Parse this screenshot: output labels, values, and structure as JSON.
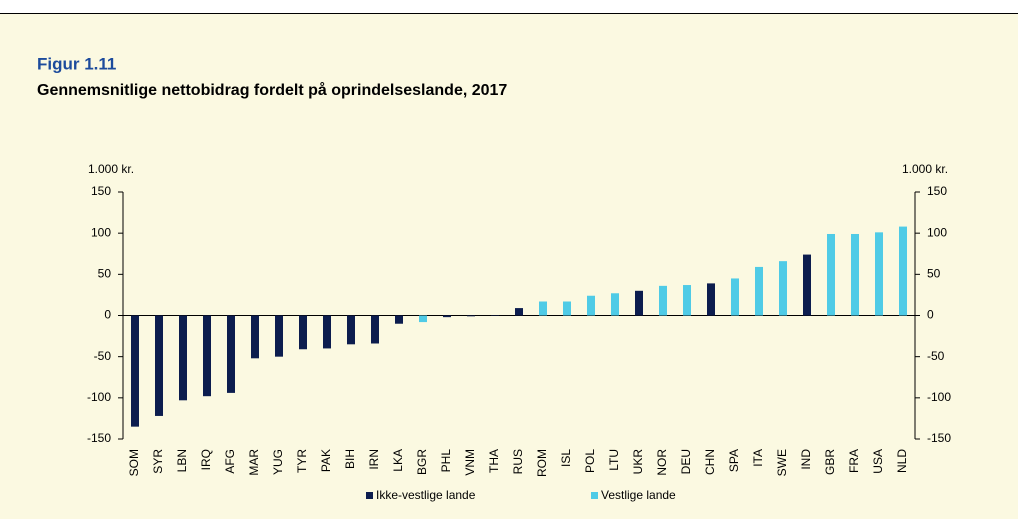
{
  "chart_data": {
    "type": "bar",
    "figure_label": "Figur 1.11",
    "title": "Gennemsnitlige nettobidrag fordelt på oprindelseslande, 2017",
    "y_unit": "1.000 kr.",
    "y2_unit": "1.000 kr.",
    "categories": [
      "SOM",
      "SYR",
      "LBN",
      "IRQ",
      "AFG",
      "MAR",
      "YUG",
      "TYR",
      "PAK",
      "BIH",
      "IRN",
      "LKA",
      "BGR",
      "PHL",
      "VNM",
      "THA",
      "RUS",
      "ROM",
      "ISL",
      "POL",
      "LTU",
      "UKR",
      "NOR",
      "DEU",
      "CHN",
      "SPA",
      "ITA",
      "SWE",
      "IND",
      "GBR",
      "FRA",
      "USA",
      "NLD"
    ],
    "series": [
      {
        "name": "Ikke-vestlige lande",
        "color": "#0c1d4e",
        "values": [
          -135,
          -122,
          -103,
          -98,
          -94,
          -52,
          -50,
          -41,
          -40,
          -35,
          -34,
          -10,
          null,
          -2,
          -1,
          0,
          9,
          null,
          null,
          null,
          null,
          30,
          null,
          null,
          39,
          null,
          null,
          null,
          74,
          null,
          null,
          null,
          null
        ]
      },
      {
        "name": "Vestlige lande",
        "color": "#4fcbe6",
        "values": [
          null,
          null,
          null,
          null,
          null,
          null,
          null,
          null,
          null,
          null,
          null,
          null,
          -8,
          null,
          null,
          null,
          null,
          17,
          17,
          24,
          27,
          null,
          36,
          37,
          null,
          45,
          59,
          66,
          null,
          99,
          99,
          101,
          108
        ]
      }
    ],
    "ylim": [
      -150,
      150
    ],
    "yticks": [
      -150,
      -100,
      -50,
      0,
      50,
      100,
      150
    ],
    "y2lim": [
      -150,
      150
    ],
    "y2ticks": [
      -150,
      -100,
      -50,
      0,
      50,
      100,
      150
    ]
  }
}
